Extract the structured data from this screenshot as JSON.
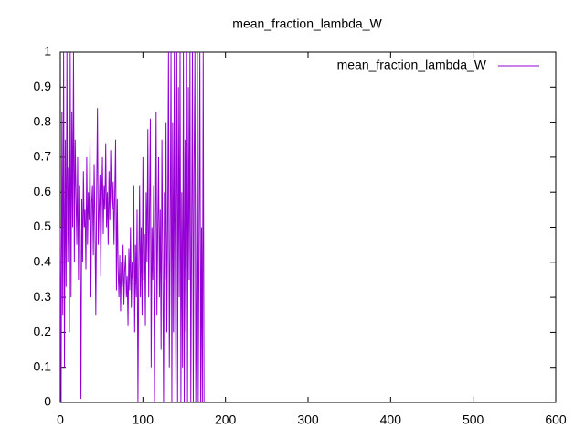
{
  "chart_data": {
    "type": "line",
    "title": "mean_fraction_lambda_W",
    "x": [
      0,
      1,
      2,
      3,
      4,
      5,
      6,
      7,
      8,
      9,
      10,
      11,
      12,
      13,
      14,
      15,
      16,
      17,
      18,
      19,
      20,
      21,
      22,
      23,
      24,
      25,
      26,
      27,
      28,
      29,
      30,
      31,
      32,
      33,
      34,
      35,
      36,
      37,
      38,
      39,
      40,
      41,
      42,
      43,
      44,
      45,
      46,
      47,
      48,
      49,
      50,
      51,
      52,
      53,
      54,
      55,
      56,
      57,
      58,
      59,
      60,
      61,
      62,
      63,
      64,
      65,
      66,
      67,
      68,
      69,
      70,
      71,
      72,
      73,
      74,
      75,
      76,
      77,
      78,
      79,
      80,
      81,
      82,
      83,
      84,
      85,
      86,
      87,
      88,
      89,
      90,
      91,
      92,
      93,
      94,
      95,
      96,
      97,
      98,
      99,
      100,
      101,
      102,
      103,
      104,
      105,
      106,
      107,
      108,
      109,
      110,
      111,
      112,
      113,
      114,
      115,
      116,
      117,
      118,
      119,
      120,
      121,
      122,
      123,
      124,
      125,
      126,
      127,
      128,
      129,
      130,
      131,
      132,
      133,
      134,
      135,
      136,
      137,
      138,
      139,
      140,
      141,
      142,
      143,
      144,
      145,
      146,
      147,
      148,
      149,
      150,
      151,
      152,
      153,
      154,
      155,
      156,
      157,
      158,
      159,
      160,
      161,
      162,
      163,
      164,
      165,
      166,
      167,
      168,
      169,
      170,
      171,
      172,
      173,
      174
    ],
    "series": [
      {
        "name": "mean_fraction_lambda_W",
        "color": "#9400d3",
        "values": [
          0.5,
          0,
          0.83,
          0.25,
          1,
          0.1,
          0.75,
          0.33,
          1,
          0.4,
          0.67,
          0.2,
          1,
          0.3,
          0.83,
          0.5,
          1,
          0.4,
          0.75,
          0.6,
          0.45,
          0.7,
          0.35,
          0.62,
          0.48,
          0.01,
          0.58,
          0.4,
          0.66,
          0.5,
          0.55,
          0.38,
          0.7,
          0.45,
          0.6,
          0.52,
          0.75,
          0.3,
          0.57,
          0.62,
          0.42,
          0.68,
          0.5,
          0.25,
          0.6,
          0.84,
          0.45,
          0.55,
          0.65,
          0.36,
          0.58,
          0.7,
          0.48,
          0.62,
          0.55,
          0.74,
          0.5,
          0.6,
          0.45,
          0.66,
          0.52,
          0.72,
          0.58,
          0.55,
          0.63,
          0.45,
          0.6,
          0.75,
          0.32,
          0.58,
          0.38,
          0.3,
          0.42,
          0.26,
          0.4,
          0.33,
          0.45,
          0.28,
          0.38,
          0.42,
          0.3,
          0.36,
          0.22,
          0.44,
          0.32,
          0.5,
          0.27,
          0.4,
          0.35,
          0.62,
          0.2,
          0.45,
          0.3,
          0.55,
          0,
          0.38,
          0.62,
          0.3,
          0.5,
          0.25,
          0.7,
          0.35,
          0.48,
          0.22,
          0.6,
          0.4,
          0.78,
          0.3,
          0.55,
          0.81,
          0.1,
          0.5,
          0.35,
          0.62,
          0,
          0.45,
          0.83,
          0.25,
          0.5,
          0.7,
          0.3,
          0.55,
          0.15,
          0.75,
          0.42,
          0,
          0.6,
          0.35,
          0.8,
          0.2,
          0.5,
          1,
          0.1,
          0.45,
          1,
          0,
          0.8,
          0.2,
          1,
          0.05,
          0.5,
          1,
          0,
          0.9,
          0.3,
          1,
          0,
          0.6,
          0.1,
          1,
          0,
          0.75,
          0.2,
          1,
          0,
          0.9,
          0.35,
          1,
          0,
          0.5,
          1,
          0,
          0.67,
          1,
          0,
          0.33,
          1,
          0,
          0.5,
          1,
          0,
          0.5,
          0,
          1,
          0
        ]
      }
    ],
    "xlim": [
      0,
      600
    ],
    "xticks": [
      0,
      100,
      200,
      300,
      400,
      500,
      600
    ],
    "ylim": [
      0,
      1
    ],
    "yticks": [
      0,
      0.1,
      0.2,
      0.3,
      0.4,
      0.5,
      0.6,
      0.7,
      0.8,
      0.9,
      1
    ],
    "legend": "top-right"
  }
}
